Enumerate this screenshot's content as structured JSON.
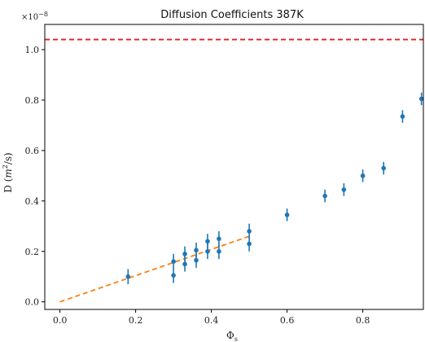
{
  "chart_data": {
    "type": "scatter",
    "title": "Diffusion Coefficients 387K",
    "xlabel": "Φ",
    "xlabel_sub": "s",
    "ylabel_prefix": "D (",
    "ylabel_var": "m",
    "ylabel_exp": "2",
    "ylabel_suffix": "/s)",
    "y_multiplier_base": "×10",
    "y_multiplier_exp": "−8",
    "xlim": [
      -0.04,
      0.96
    ],
    "ylim": [
      -0.03,
      1.1
    ],
    "xticks": [
      0.0,
      0.2,
      0.4,
      0.6,
      0.8
    ],
    "xtick_labels": [
      "0.0",
      "0.2",
      "0.4",
      "0.6",
      "0.8"
    ],
    "yticks": [
      0.0,
      0.2,
      0.4,
      0.6,
      0.8,
      1.0
    ],
    "ytick_labels": [
      "0.0",
      "0.2",
      "0.4",
      "0.6",
      "0.8",
      "1.0"
    ],
    "grid": false,
    "series": [
      {
        "points": [
          {
            "x": 0.18,
            "y": 0.1,
            "err": 0.03
          },
          {
            "x": 0.3,
            "y": 0.105,
            "err": 0.03
          },
          {
            "x": 0.3,
            "y": 0.16,
            "err": 0.03
          },
          {
            "x": 0.33,
            "y": 0.15,
            "err": 0.03
          },
          {
            "x": 0.33,
            "y": 0.19,
            "err": 0.03
          },
          {
            "x": 0.36,
            "y": 0.165,
            "err": 0.03
          },
          {
            "x": 0.36,
            "y": 0.205,
            "err": 0.03
          },
          {
            "x": 0.39,
            "y": 0.2,
            "err": 0.03
          },
          {
            "x": 0.39,
            "y": 0.24,
            "err": 0.03
          },
          {
            "x": 0.42,
            "y": 0.2,
            "err": 0.03
          },
          {
            "x": 0.42,
            "y": 0.25,
            "err": 0.03
          },
          {
            "x": 0.5,
            "y": 0.23,
            "err": 0.03
          },
          {
            "x": 0.5,
            "y": 0.28,
            "err": 0.03
          },
          {
            "x": 0.6,
            "y": 0.345,
            "err": 0.025
          },
          {
            "x": 0.7,
            "y": 0.42,
            "err": 0.025
          },
          {
            "x": 0.75,
            "y": 0.445,
            "err": 0.025
          },
          {
            "x": 0.8,
            "y": 0.5,
            "err": 0.025
          },
          {
            "x": 0.855,
            "y": 0.53,
            "err": 0.025
          },
          {
            "x": 0.905,
            "y": 0.735,
            "err": 0.025
          },
          {
            "x": 0.955,
            "y": 0.805,
            "err": 0.025
          }
        ],
        "color": "#1f77b4"
      }
    ],
    "lines": [
      {
        "style": "dashed",
        "color": "#ff7f0e",
        "x": [
          0.0,
          0.5
        ],
        "y": [
          0.0,
          0.26
        ]
      },
      {
        "style": "dashed",
        "color": "#e0201b",
        "x": [
          -0.04,
          0.96
        ],
        "y": [
          1.04,
          1.04
        ]
      }
    ]
  }
}
